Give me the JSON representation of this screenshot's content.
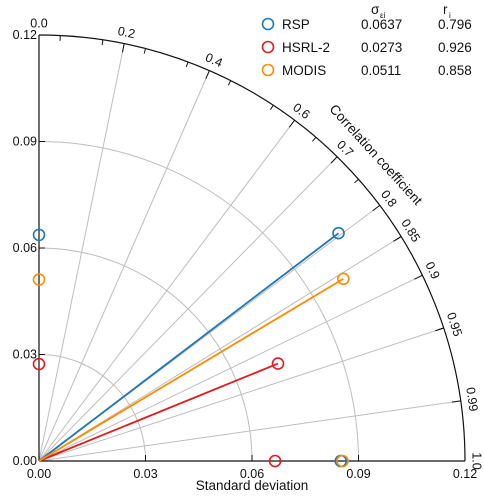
{
  "chart_data": {
    "type": "scatter",
    "subtype": "taylor-diagram",
    "xlabel": "Standard deviation",
    "rlabel": "Correlation coefficient",
    "std_range": [
      0,
      0.12
    ],
    "std_ticks": [
      "0.00",
      "0.03",
      "0.06",
      "0.09",
      "0.12"
    ],
    "correlation_ticks": [
      {
        "value": 0.0,
        "label": "0.0"
      },
      {
        "value": 0.2,
        "label": "0.2"
      },
      {
        "value": 0.4,
        "label": "0.4"
      },
      {
        "value": 0.6,
        "label": "0.6"
      },
      {
        "value": 0.7,
        "label": "0.7"
      },
      {
        "value": 0.8,
        "label": "0.8"
      },
      {
        "value": 0.85,
        "label": "0.85"
      },
      {
        "value": 0.9,
        "label": "0.9"
      },
      {
        "value": 0.95,
        "label": "0.95"
      },
      {
        "value": 0.99,
        "label": "0.99"
      },
      {
        "value": 1.0,
        "label": "1.0"
      }
    ],
    "legend": {
      "placement": "top-right",
      "col_sigma_header": "σ",
      "col_sigma_sub": "εi",
      "col_r_header": "r",
      "col_r_sub": "i"
    },
    "series": [
      {
        "name": "RSP",
        "color": "#1f77b4",
        "sigma_text": "0.0637",
        "r_text": "0.796",
        "std": 0.106,
        "corr": 0.796,
        "y_axis_value": 0.0637,
        "x_axis_value": 0.085
      },
      {
        "name": "HSRL-2",
        "color": "#e31a1c",
        "sigma_text": "0.0273",
        "r_text": "0.926",
        "std": 0.0727,
        "corr": 0.926,
        "y_axis_value": 0.0273,
        "x_axis_value": 0.0665
      },
      {
        "name": "MODIS",
        "color": "#ff8c00",
        "sigma_text": "0.0511",
        "r_text": "0.858",
        "std": 0.0999,
        "corr": 0.858,
        "y_axis_value": 0.0511,
        "x_axis_value": 0.0855
      }
    ]
  }
}
